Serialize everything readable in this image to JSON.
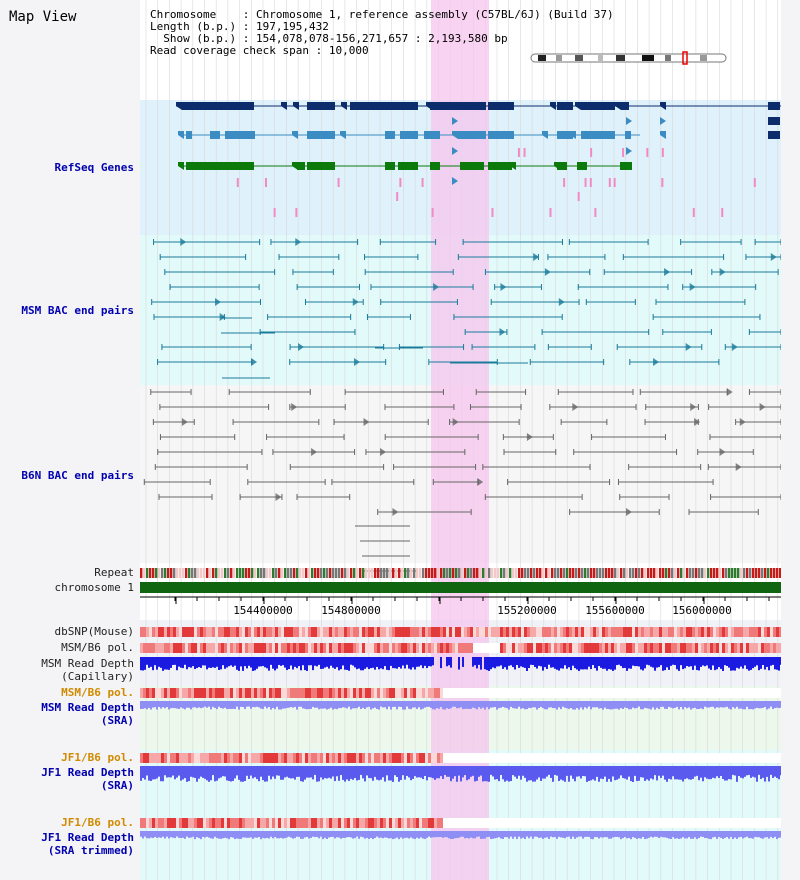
{
  "page": {
    "title": "Map View"
  },
  "info": {
    "chromosome_label": "Chromosome",
    "chromosome_value": "Chromosome 1, reference assembly (C57BL/6J) (Build 37)",
    "length_label": "Length (b.p.)",
    "length_value": "197,195,432",
    "show_label": "Show (b.p.)",
    "show_value": "154,078,078-156,271,657 : 2,193,580 bp",
    "coverage_label": "Read coverage check span",
    "coverage_value": "10,000"
  },
  "tracks": {
    "refseq": "RefSeq Genes",
    "msm_bac": "MSM BAC end pairs",
    "b6n_bac": "B6N BAC end pairs",
    "repeat": "Repeat",
    "chromosome": "chromosome 1",
    "dbsnp": "dbSNP(Mouse)",
    "msm_b6_pol": "MSM/B6 pol.",
    "msm_read_depth_cap": "MSM Read Depth\n(Capillary)",
    "msm_b6_pol_2": "MSM/B6 pol.",
    "msm_read_depth_sra": "MSM Read Depth\n(SRA)",
    "jf1_b6_pol": "JF1/B6 pol.",
    "jf1_read_depth_sra": "JF1 Read Depth\n(SRA)",
    "jf1_b6_pol_2": "JF1/B6 pol.",
    "jf1_read_depth_trim": "JF1 Read Depth\n(SRA trimmed)"
  },
  "axis": {
    "ticks": [
      "154400000",
      "154800000",
      "155200000",
      "155600000",
      "156000000"
    ]
  },
  "colors": {
    "refseq_bg": "#dff1fb",
    "msm_bg": "#e2fafa",
    "highlight": "#f6c6ee",
    "gene_dark": "#0d2c6b",
    "gene_mid": "#3a8cc2",
    "gene_green": "#0b7a0b",
    "chromosome": "#106610",
    "bac_msm": "#1a7a9a",
    "bac_b6n": "#666666",
    "depth_blue": "#1a1ae0",
    "depth_light": "#8e8ef4"
  }
}
